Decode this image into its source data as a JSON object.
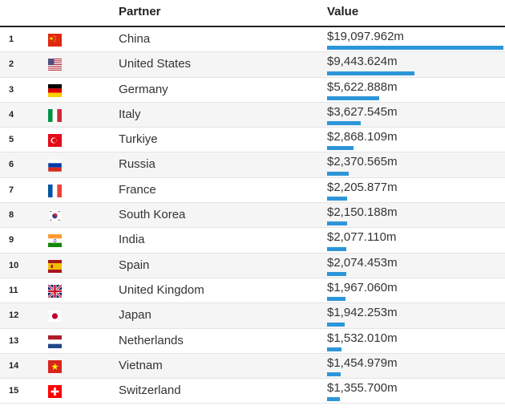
{
  "header": {
    "partner": "Partner",
    "value": "Value"
  },
  "colors": {
    "bar": "#2d96d9"
  },
  "rows": [
    {
      "rank": "1",
      "name": "China",
      "value_label": "$19,097.962m",
      "value": 19097.962,
      "flag": "china-flag-icon"
    },
    {
      "rank": "2",
      "name": "United States",
      "value_label": "$9,443.624m",
      "value": 9443.624,
      "flag": "us-flag-icon"
    },
    {
      "rank": "3",
      "name": "Germany",
      "value_label": "$5,622.888m",
      "value": 5622.888,
      "flag": "germany-flag-icon"
    },
    {
      "rank": "4",
      "name": "Italy",
      "value_label": "$3,627.545m",
      "value": 3627.545,
      "flag": "italy-flag-icon"
    },
    {
      "rank": "5",
      "name": "Turkiye",
      "value_label": "$2,868.109m",
      "value": 2868.109,
      "flag": "turkiye-flag-icon"
    },
    {
      "rank": "6",
      "name": "Russia",
      "value_label": "$2,370.565m",
      "value": 2370.565,
      "flag": "russia-flag-icon"
    },
    {
      "rank": "7",
      "name": "France",
      "value_label": "$2,205.877m",
      "value": 2205.877,
      "flag": "france-flag-icon"
    },
    {
      "rank": "8",
      "name": "South Korea",
      "value_label": "$2,150.188m",
      "value": 2150.188,
      "flag": "south-korea-flag-icon"
    },
    {
      "rank": "9",
      "name": "India",
      "value_label": "$2,077.110m",
      "value": 2077.11,
      "flag": "india-flag-icon"
    },
    {
      "rank": "10",
      "name": "Spain",
      "value_label": "$2,074.453m",
      "value": 2074.453,
      "flag": "spain-flag-icon"
    },
    {
      "rank": "11",
      "name": "United Kingdom",
      "value_label": "$1,967.060m",
      "value": 1967.06,
      "flag": "uk-flag-icon"
    },
    {
      "rank": "12",
      "name": "Japan",
      "value_label": "$1,942.253m",
      "value": 1942.253,
      "flag": "japan-flag-icon"
    },
    {
      "rank": "13",
      "name": "Netherlands",
      "value_label": "$1,532.010m",
      "value": 1532.01,
      "flag": "netherlands-flag-icon"
    },
    {
      "rank": "14",
      "name": "Vietnam",
      "value_label": "$1,454.979m",
      "value": 1454.979,
      "flag": "vietnam-flag-icon"
    },
    {
      "rank": "15",
      "name": "Switzerland",
      "value_label": "$1,355.700m",
      "value": 1355.7,
      "flag": "switzerland-flag-icon"
    }
  ]
}
